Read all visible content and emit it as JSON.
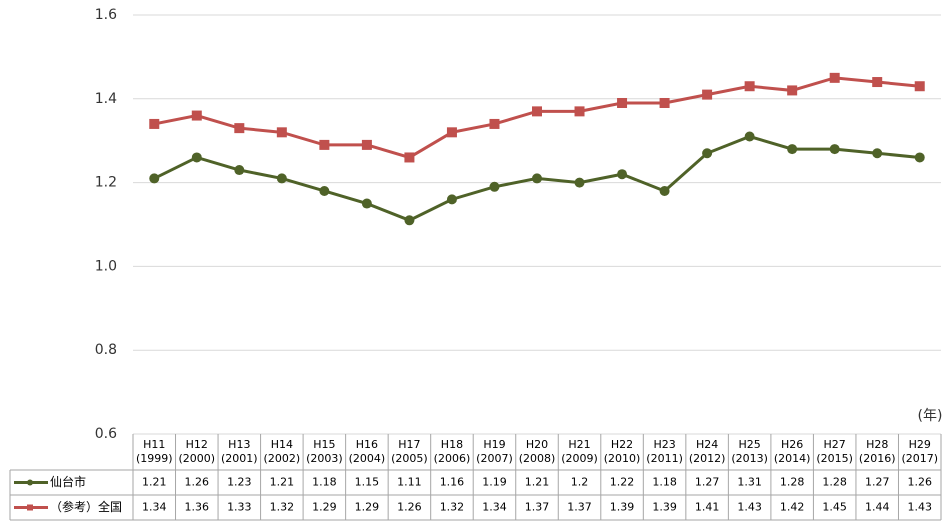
{
  "chart_data": {
    "type": "line",
    "x_label": "(年)",
    "categories": [
      "H11\n(1999)",
      "H12\n(2000)",
      "H13\n(2001)",
      "H14\n(2002)",
      "H15\n(2003)",
      "H16\n(2004)",
      "H17\n(2005)",
      "H18\n(2006)",
      "H19\n(2007)",
      "H20\n(2008)",
      "H21\n(2009)",
      "H22\n(2010)",
      "H23\n(2011)",
      "H24\n(2012)",
      "H25\n(2013)",
      "H26\n(2014)",
      "H27\n(2015)",
      "H28\n(2016)",
      "H29\n(2017)"
    ],
    "series": [
      {
        "name": "仙台市",
        "color": "#4f6228",
        "marker": "circle",
        "values": [
          1.21,
          1.26,
          1.23,
          1.21,
          1.18,
          1.15,
          1.11,
          1.16,
          1.19,
          1.21,
          1.2,
          1.22,
          1.18,
          1.27,
          1.31,
          1.28,
          1.28,
          1.27,
          1.26
        ]
      },
      {
        "name": "（参考）全国",
        "color": "#c0504d",
        "marker": "square",
        "values": [
          1.34,
          1.36,
          1.33,
          1.32,
          1.29,
          1.29,
          1.26,
          1.32,
          1.34,
          1.37,
          1.37,
          1.39,
          1.39,
          1.41,
          1.43,
          1.42,
          1.45,
          1.44,
          1.43
        ]
      }
    ],
    "ylim": [
      0.6,
      1.6
    ],
    "yticks": [
      0.6,
      0.8,
      {
        "value": 1,
        "label": "1.0"
      },
      1.2,
      1.4,
      1.6
    ],
    "grid": true
  }
}
